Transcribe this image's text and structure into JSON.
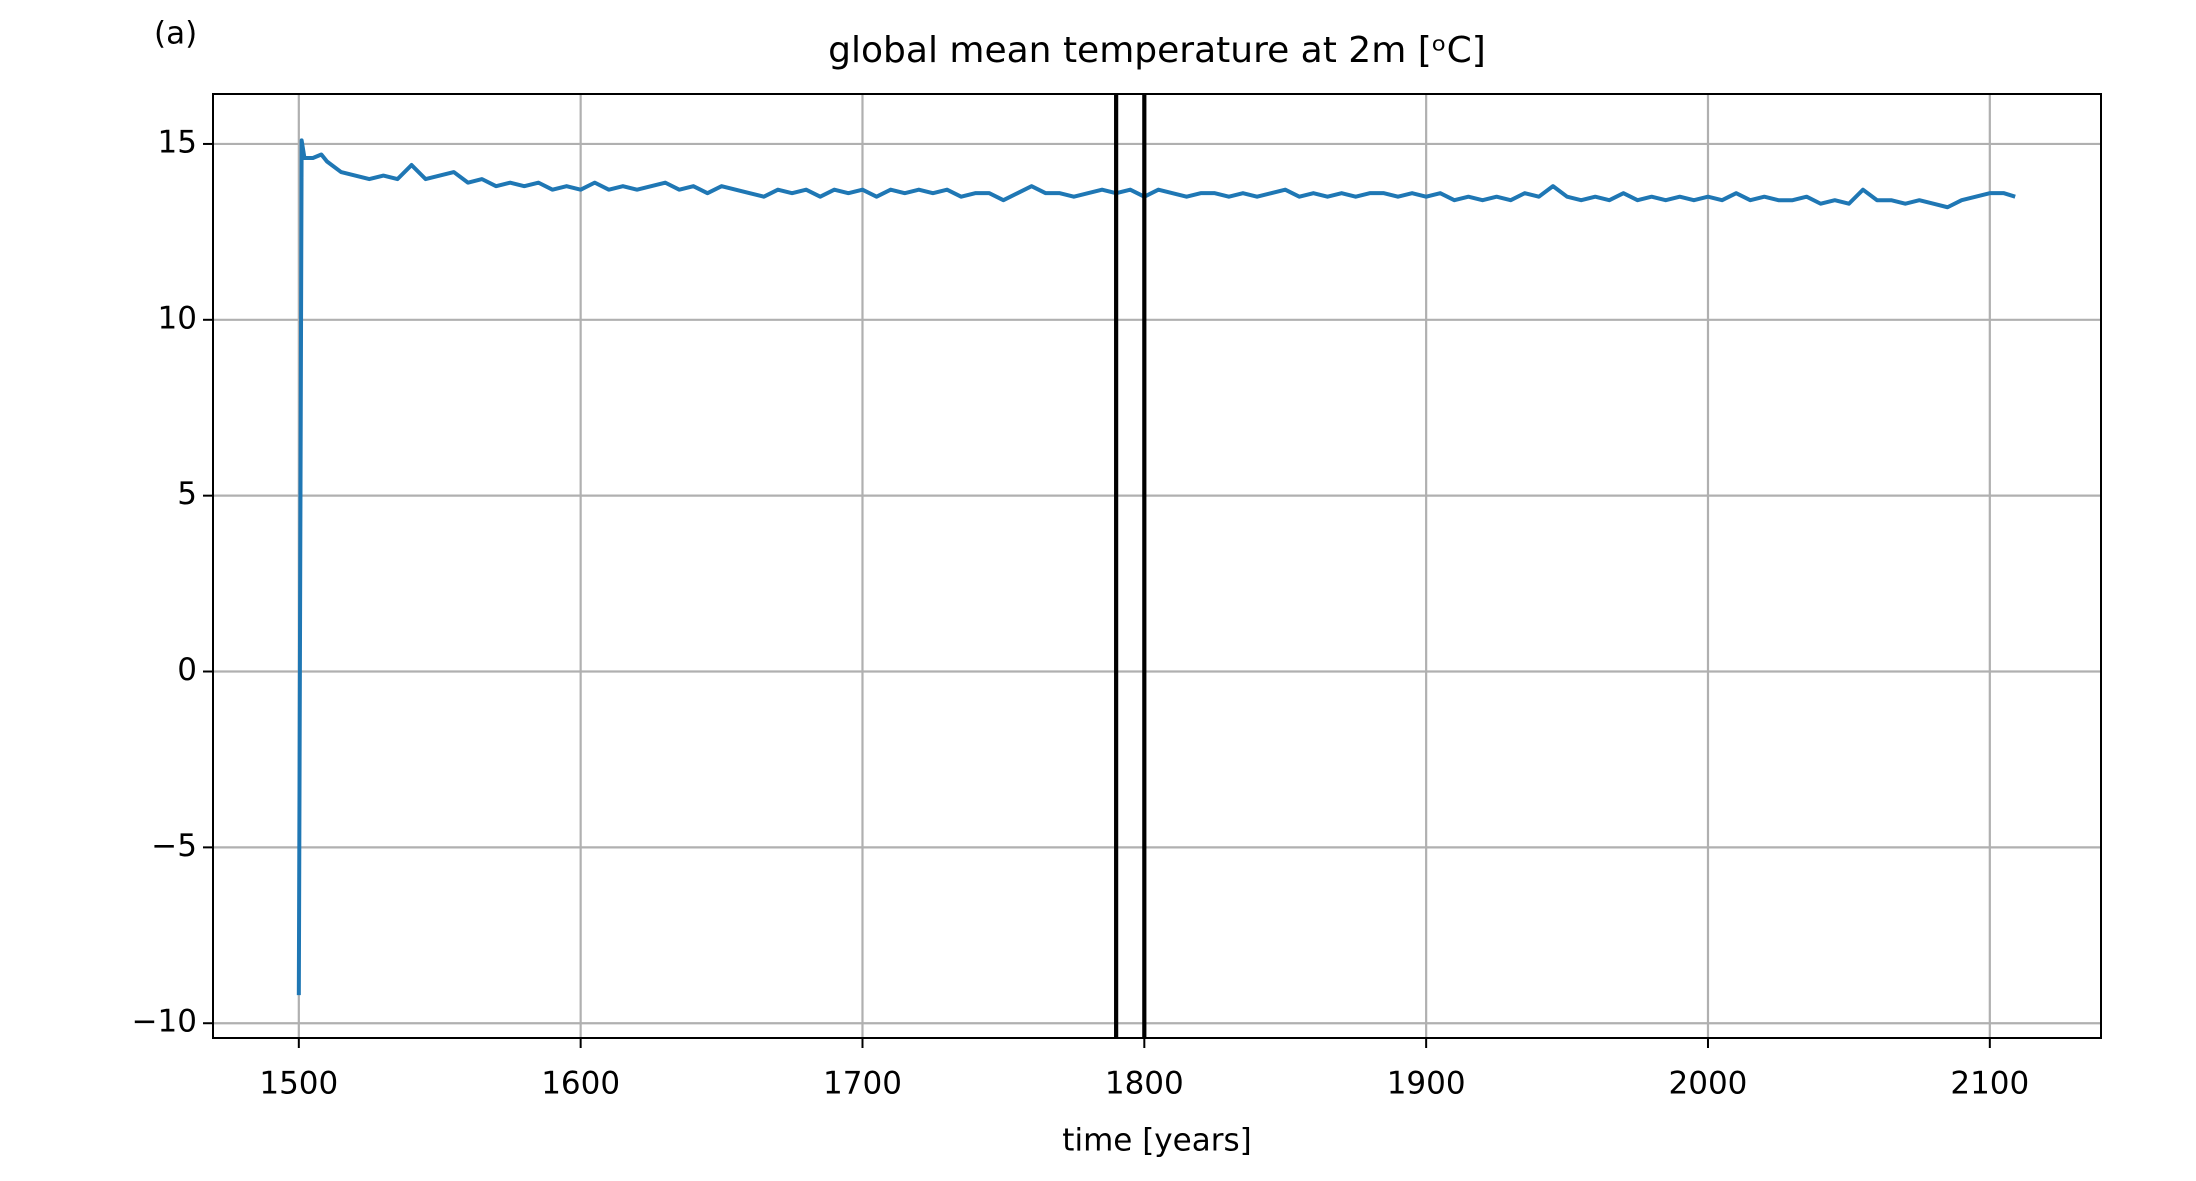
{
  "chart_data": {
    "type": "line",
    "panel_label": "(a)",
    "title": "global mean temperature at 2m [ᵒC]",
    "x_label": "time [years]",
    "x": [
      1500,
      1501,
      1502,
      1505,
      1508,
      1510,
      1515,
      1520,
      1525,
      1530,
      1535,
      1540,
      1545,
      1550,
      1555,
      1560,
      1565,
      1570,
      1575,
      1580,
      1585,
      1590,
      1595,
      1600,
      1605,
      1610,
      1615,
      1620,
      1625,
      1630,
      1635,
      1640,
      1645,
      1650,
      1655,
      1660,
      1665,
      1670,
      1675,
      1680,
      1685,
      1690,
      1695,
      1700,
      1705,
      1710,
      1715,
      1720,
      1725,
      1730,
      1735,
      1740,
      1745,
      1750,
      1755,
      1760,
      1765,
      1770,
      1775,
      1780,
      1785,
      1790,
      1795,
      1800,
      1805,
      1810,
      1815,
      1820,
      1825,
      1830,
      1835,
      1840,
      1845,
      1850,
      1855,
      1860,
      1865,
      1870,
      1875,
      1880,
      1885,
      1890,
      1895,
      1900,
      1905,
      1910,
      1915,
      1920,
      1925,
      1930,
      1935,
      1940,
      1945,
      1950,
      1955,
      1960,
      1965,
      1970,
      1975,
      1980,
      1985,
      1990,
      1995,
      2000,
      2005,
      2010,
      2015,
      2020,
      2025,
      2030,
      2035,
      2040,
      2045,
      2050,
      2055,
      2060,
      2065,
      2070,
      2075,
      2080,
      2085,
      2090,
      2095,
      2100,
      2105,
      2109
    ],
    "series": [
      {
        "color": "#1f77b4",
        "values": [
          -9.2,
          15.1,
          14.6,
          14.6,
          14.7,
          14.5,
          14.2,
          14.1,
          14.0,
          14.1,
          14.0,
          14.4,
          14.0,
          14.1,
          14.2,
          13.9,
          14.0,
          13.8,
          13.9,
          13.8,
          13.9,
          13.7,
          13.8,
          13.7,
          13.9,
          13.7,
          13.8,
          13.7,
          13.8,
          13.9,
          13.7,
          13.8,
          13.6,
          13.8,
          13.7,
          13.6,
          13.5,
          13.7,
          13.6,
          13.7,
          13.5,
          13.7,
          13.6,
          13.7,
          13.5,
          13.7,
          13.6,
          13.7,
          13.6,
          13.7,
          13.5,
          13.6,
          13.6,
          13.4,
          13.6,
          13.8,
          13.6,
          13.6,
          13.5,
          13.6,
          13.7,
          13.6,
          13.7,
          13.5,
          13.7,
          13.6,
          13.5,
          13.6,
          13.6,
          13.5,
          13.6,
          13.5,
          13.6,
          13.7,
          13.5,
          13.6,
          13.5,
          13.6,
          13.5,
          13.6,
          13.6,
          13.5,
          13.6,
          13.5,
          13.6,
          13.4,
          13.5,
          13.4,
          13.5,
          13.4,
          13.6,
          13.5,
          13.8,
          13.5,
          13.4,
          13.5,
          13.4,
          13.6,
          13.4,
          13.5,
          13.4,
          13.5,
          13.4,
          13.5,
          13.4,
          13.6,
          13.4,
          13.5,
          13.4,
          13.4,
          13.5,
          13.3,
          13.4,
          13.3,
          13.7,
          13.4,
          13.4,
          13.3,
          13.4,
          13.3,
          13.2,
          13.4,
          13.5,
          13.6,
          13.6,
          13.5
        ]
      }
    ],
    "vlines": [
      1790,
      1800
    ],
    "vline_color": "#000000",
    "xlim": [
      1469.55,
      2139.45
    ],
    "ylim": [
      -10.42,
      16.42
    ],
    "xticks": [
      1500,
      1600,
      1700,
      1800,
      1900,
      2000,
      2100
    ],
    "yticks": [
      {
        "value": -10,
        "label": "−10"
      },
      {
        "value": -5,
        "label": "−5"
      },
      0,
      5,
      10,
      15
    ],
    "grid": true
  }
}
